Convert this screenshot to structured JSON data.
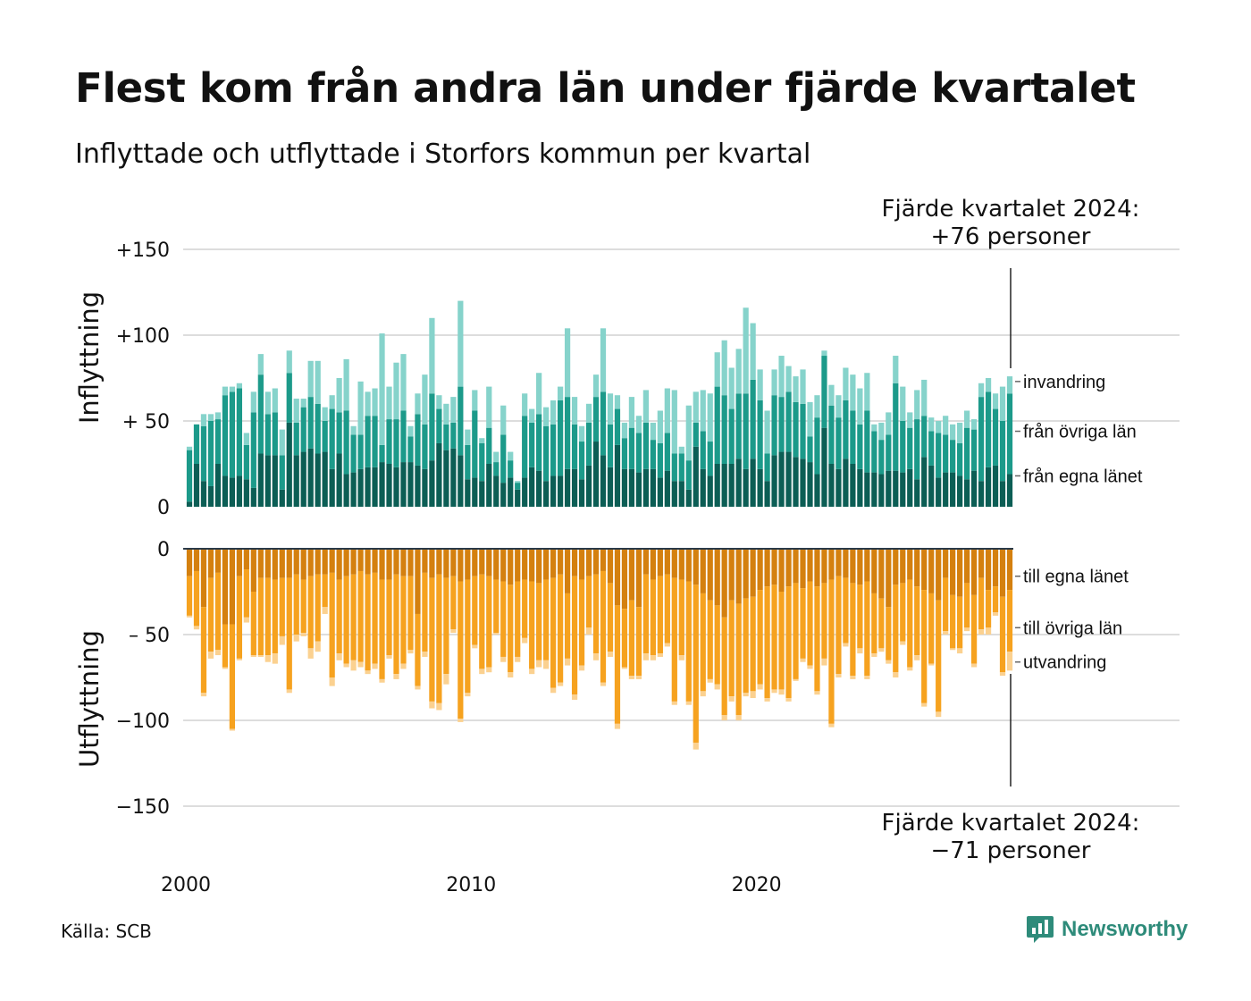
{
  "title": "Flest kom från andra län under fjärde kvartalet",
  "subtitle": "Inflyttade och utflyttade i Storfors kommun per kvartal",
  "source": "Källa: SCB",
  "brand": "Newsworthy",
  "colors": {
    "in_own": "#0c5e55",
    "in_other": "#1c9a8a",
    "in_immigration": "#86d3cb",
    "out_own": "#d4800f",
    "out_other": "#f6a21f",
    "out_emigration": "#fbd190",
    "brand": "#2e8b7a",
    "grid": "#dddddd"
  },
  "chart_data": [
    {
      "type": "bar",
      "stacked": true,
      "panel": "top",
      "ylabel": "Inflyttning",
      "ylim": [
        0,
        150
      ],
      "yticks": [
        0,
        50,
        100,
        150
      ],
      "ytick_labels": [
        "0",
        "+ 50",
        "+100",
        "+150"
      ],
      "grid": true,
      "x_start": 2000,
      "quarters_per_year": 4,
      "xticks": [
        2000,
        2010,
        2020
      ],
      "xtick_labels": [
        "2000",
        "2010",
        "2020"
      ],
      "series": [
        {
          "name": "från egna länet",
          "values": [
            3,
            25,
            15,
            12,
            25,
            18,
            17,
            18,
            16,
            11,
            31,
            30,
            30,
            10,
            49,
            30,
            32,
            34,
            31,
            32,
            22,
            31,
            19,
            20,
            22,
            23,
            23,
            26,
            25,
            23,
            26,
            26,
            24,
            22,
            27,
            37,
            33,
            34,
            30,
            16,
            17,
            15,
            25,
            18,
            14,
            17,
            10,
            17,
            23,
            21,
            15,
            18,
            18,
            22,
            22,
            16,
            24,
            38,
            30,
            23,
            36,
            22,
            22,
            20,
            22,
            22,
            17,
            21,
            15,
            15,
            10,
            35,
            22,
            18,
            25,
            25,
            25,
            28,
            22,
            28,
            22,
            15,
            30,
            32,
            32,
            29,
            28,
            26,
            19,
            46,
            25,
            22,
            28,
            25,
            22,
            20,
            20,
            19,
            21,
            21,
            20,
            22,
            16,
            29,
            24,
            17,
            20,
            20,
            18,
            16,
            21,
            15,
            23,
            24,
            15,
            19
          ]
        },
        {
          "name": "från övriga län",
          "values": [
            30,
            23,
            32,
            38,
            26,
            47,
            50,
            51,
            20,
            44,
            46,
            24,
            25,
            20,
            29,
            19,
            26,
            30,
            29,
            18,
            35,
            24,
            37,
            22,
            20,
            30,
            30,
            10,
            26,
            28,
            30,
            15,
            30,
            26,
            39,
            20,
            15,
            15,
            40,
            20,
            39,
            22,
            21,
            8,
            28,
            10,
            4,
            36,
            26,
            33,
            32,
            30,
            44,
            42,
            26,
            22,
            25,
            26,
            37,
            25,
            21,
            18,
            24,
            23,
            27,
            17,
            20,
            22,
            16,
            16,
            17,
            14,
            22,
            20,
            45,
            40,
            32,
            38,
            44,
            46,
            40,
            16,
            35,
            32,
            35,
            32,
            32,
            15,
            33,
            42,
            34,
            30,
            34,
            31,
            26,
            36,
            24,
            20,
            21,
            51,
            30,
            24,
            35,
            24,
            20,
            26,
            22,
            19,
            19,
            30,
            24,
            49,
            44,
            33,
            35,
            47
          ]
        },
        {
          "name": "invandring",
          "values": [
            2,
            0,
            7,
            4,
            4,
            5,
            3,
            3,
            7,
            12,
            12,
            13,
            14,
            15,
            13,
            14,
            5,
            21,
            25,
            8,
            8,
            20,
            30,
            5,
            31,
            14,
            16,
            65,
            19,
            33,
            33,
            6,
            12,
            29,
            44,
            8,
            12,
            15,
            50,
            9,
            12,
            3,
            24,
            6,
            17,
            5,
            1,
            13,
            8,
            24,
            11,
            14,
            8,
            40,
            16,
            9,
            11,
            13,
            37,
            18,
            8,
            9,
            18,
            10,
            19,
            10,
            19,
            26,
            37,
            4,
            32,
            18,
            24,
            28,
            20,
            32,
            24,
            26,
            50,
            33,
            18,
            25,
            15,
            24,
            15,
            15,
            20,
            20,
            13,
            3,
            12,
            13,
            19,
            21,
            21,
            22,
            4,
            10,
            13,
            16,
            20,
            9,
            17,
            21,
            8,
            7,
            11,
            9,
            12,
            10,
            6,
            8,
            8,
            9,
            20,
            10
          ]
        }
      ]
    },
    {
      "type": "bar",
      "stacked": true,
      "panel": "bottom",
      "ylabel": "Utflyttning",
      "ylim": [
        -150,
        0
      ],
      "yticks": [
        0,
        -50,
        -100,
        -150
      ],
      "ytick_labels": [
        "0",
        "– 50",
        "−100",
        "−150"
      ],
      "grid": true,
      "x_start": 2000,
      "quarters_per_year": 4,
      "series": [
        {
          "name": "till egna länet",
          "values": [
            -16,
            -13,
            -34,
            -17,
            -14,
            -44,
            -44,
            -16,
            -12,
            -25,
            -17,
            -17,
            -18,
            -17,
            -17,
            -15,
            -18,
            -16,
            -15,
            -15,
            -14,
            -18,
            -16,
            -15,
            -13,
            -15,
            -14,
            -18,
            -18,
            -15,
            -16,
            -16,
            -38,
            -14,
            -17,
            -15,
            -17,
            -16,
            -19,
            -18,
            -16,
            -15,
            -16,
            -18,
            -19,
            -21,
            -19,
            -18,
            -19,
            -20,
            -18,
            -17,
            -15,
            -26,
            -16,
            -18,
            -16,
            -15,
            -13,
            -20,
            -33,
            -35,
            -30,
            -34,
            -15,
            -18,
            -16,
            -15,
            -17,
            -18,
            -19,
            -21,
            -26,
            -30,
            -33,
            -40,
            -30,
            -32,
            -29,
            -28,
            -24,
            -22,
            -21,
            -25,
            -22,
            -20,
            -23,
            -19,
            -22,
            -20,
            -18,
            -16,
            -17,
            -20,
            -21,
            -19,
            -26,
            -29,
            -34,
            -21,
            -20,
            -18,
            -22,
            -24,
            -26,
            -30,
            -17,
            -27,
            -28,
            -20,
            -27,
            -17,
            -24,
            -22,
            -28,
            -24
          ]
        },
        {
          "name": "till övriga län",
          "values": [
            -23,
            -32,
            -50,
            -43,
            -45,
            -25,
            -61,
            -48,
            -28,
            -37,
            -45,
            -45,
            -43,
            -34,
            -65,
            -35,
            -31,
            -42,
            -39,
            -19,
            -61,
            -43,
            -51,
            -50,
            -53,
            -56,
            -53,
            -58,
            -44,
            -58,
            -51,
            -43,
            -42,
            -46,
            -72,
            -75,
            -56,
            -31,
            -80,
            -66,
            -40,
            -55,
            -53,
            -31,
            -44,
            -51,
            -44,
            -34,
            -51,
            -45,
            -47,
            -64,
            -63,
            -38,
            -69,
            -50,
            -30,
            -46,
            -65,
            -40,
            -69,
            -34,
            -44,
            -40,
            -46,
            -44,
            -45,
            -40,
            -72,
            -44,
            -70,
            -92,
            -57,
            -46,
            -46,
            -57,
            -56,
            -65,
            -55,
            -55,
            -55,
            -65,
            -61,
            -57,
            -65,
            -56,
            -41,
            -49,
            -61,
            -44,
            -84,
            -57,
            -38,
            -54,
            -37,
            -55,
            -35,
            -29,
            -31,
            -51,
            -34,
            -51,
            -40,
            -66,
            -41,
            -65,
            -31,
            -31,
            -30,
            -26,
            -40,
            -30,
            -22,
            -15,
            -44,
            -36
          ]
        },
        {
          "name": "utvandring",
          "values": [
            -1,
            -2,
            -2,
            -4,
            -3,
            -1,
            -1,
            -1,
            -3,
            -1,
            -1,
            -4,
            -6,
            -5,
            -2,
            -4,
            -2,
            -6,
            -6,
            -4,
            -5,
            -4,
            -2,
            -6,
            -3,
            -2,
            -3,
            -2,
            -2,
            -3,
            -3,
            -2,
            -2,
            -3,
            -4,
            -4,
            -6,
            -2,
            -2,
            -2,
            -2,
            -3,
            -3,
            -1,
            -3,
            -3,
            -3,
            -3,
            -3,
            -4,
            -5,
            -3,
            -2,
            -4,
            -3,
            -3,
            -4,
            -4,
            -2,
            -3,
            -3,
            -1,
            -2,
            -2,
            -4,
            -3,
            -2,
            -2,
            -2,
            -3,
            -2,
            -4,
            -3,
            -2,
            -3,
            -3,
            -3,
            -3,
            -2,
            -4,
            -3,
            -2,
            -2,
            -3,
            -2,
            -1,
            -2,
            -2,
            -2,
            -4,
            -2,
            -2,
            -2,
            -2,
            -3,
            -2,
            -2,
            -2,
            -2,
            -3,
            -2,
            -2,
            -3,
            -2,
            -1,
            -3,
            -2,
            -1,
            -3,
            -2,
            -2,
            -3,
            -4,
            -2,
            -2,
            -11
          ]
        }
      ]
    }
  ],
  "annotations": {
    "top_line1": "Fjärde kvartalet 2024:",
    "top_line2": "+76 personer",
    "bottom_line1": "Fjärde kvartalet 2024:",
    "bottom_line2": "−71 personer"
  }
}
